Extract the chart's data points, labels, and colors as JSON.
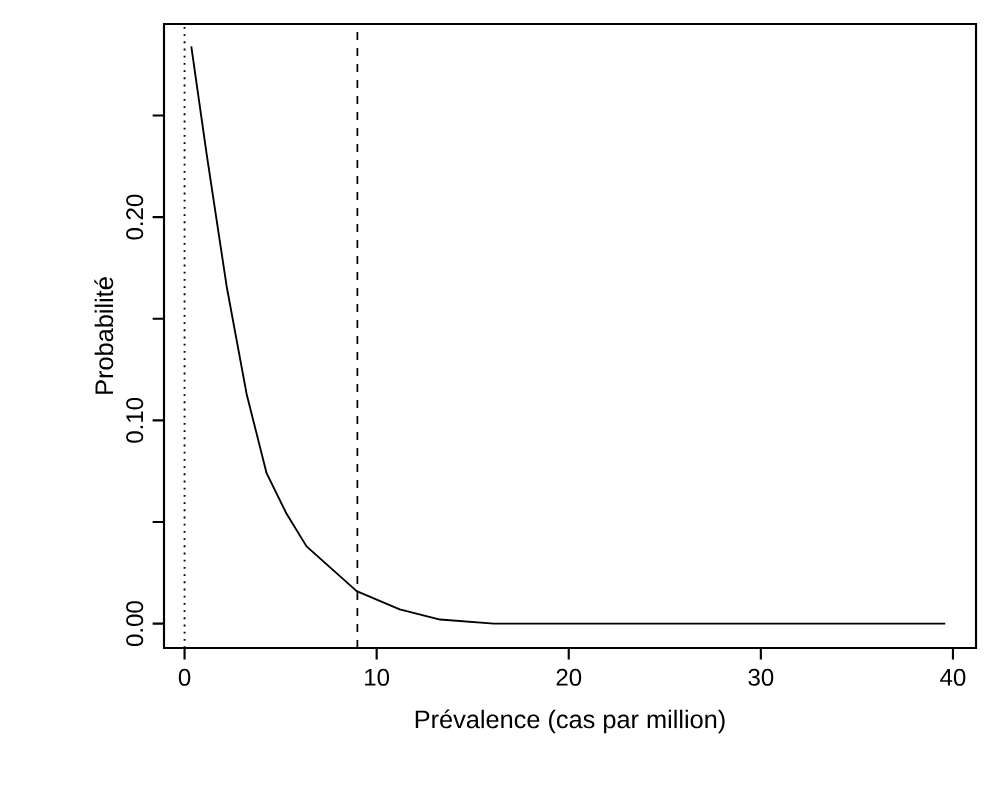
{
  "chart_data": {
    "type": "line",
    "xlabel": "Prévalence (cas par million)",
    "ylabel": "Probabilité",
    "x": [
      0.35,
      1.15,
      2.19,
      3.23,
      4.27,
      5.31,
      6.35,
      8.96,
      11.2,
      13.3,
      16.1,
      39.6
    ],
    "values": [
      0.284,
      0.231,
      0.166,
      0.113,
      0.074,
      0.054,
      0.038,
      0.016,
      0.007,
      0.002,
      0,
      0
    ],
    "color": "#000000",
    "line_style": "solid",
    "marker": "none",
    "xlim": [
      -1.07,
      41.2
    ],
    "ylim": [
      -0.012,
      0.295
    ],
    "xticks": [
      0,
      10,
      20,
      30,
      40
    ],
    "yticks": [
      {
        "value": 0,
        "label": "0.00"
      },
      {
        "value": 0.05,
        "label": null
      },
      {
        "value": 0.1,
        "label": "0.10"
      },
      {
        "value": 0.15,
        "label": null
      },
      {
        "value": 0.2,
        "label": "0.20"
      },
      {
        "value": 0.25,
        "label": null
      }
    ],
    "ref_lines": [
      {
        "axis": "x",
        "value": 0,
        "line_style": "dotted"
      },
      {
        "axis": "x",
        "value": 9,
        "line_style": "dashed"
      }
    ],
    "grid": false
  }
}
